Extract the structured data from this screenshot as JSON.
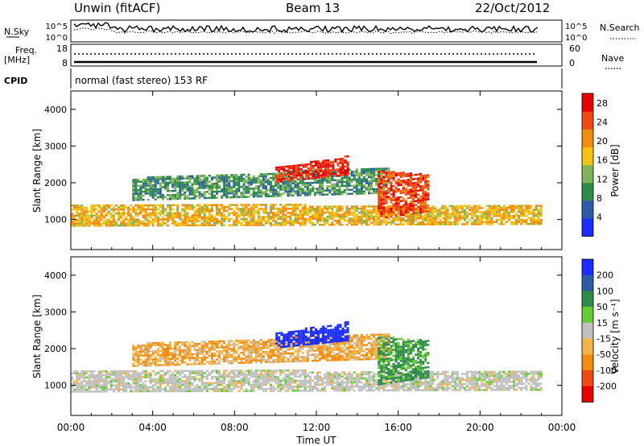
{
  "header": {
    "station": "Unwin (fitACF)",
    "beam": "Beam 13",
    "date": "22/Oct/2012"
  },
  "noise_panel": {
    "left_label": "N.Sky",
    "right_label": "N.Search",
    "left_ticks": [
      "10^5",
      "10^0"
    ],
    "right_ticks": [
      "10^5",
      "10^0"
    ]
  },
  "freq_panel": {
    "left_label_1": "Freq.",
    "left_label_2": "[MHz]",
    "left_ticks": [
      "18",
      "8"
    ],
    "right_label": "Nave",
    "right_ticks": [
      "60",
      "0"
    ]
  },
  "cpid": {
    "label": "CPID",
    "value": "normal (fast stereo) 153 RF"
  },
  "chart_data": [
    {
      "type": "heatmap",
      "panel": "power",
      "ylabel": "Slant Range [km]",
      "xlabel": "",
      "x_ticks": [
        "00:00",
        "04:00",
        "08:00",
        "12:00",
        "16:00",
        "20:00",
        "00:00"
      ],
      "xlim_hours": [
        0,
        24
      ],
      "y_ticks": [
        "1000",
        "2000",
        "3000",
        "4000"
      ],
      "ylim": [
        180,
        4500
      ],
      "colorbar": {
        "label": "Power [dB]",
        "ticks": [
          "4",
          "8",
          "12",
          "16",
          "20",
          "24",
          "28"
        ],
        "range": [
          0,
          30
        ],
        "colors": [
          "#1a2cff",
          "#2a5aa8",
          "#2e8a4a",
          "#7fb55a",
          "#f2c20e",
          "#f08c10",
          "#f04a14",
          "#e60000"
        ]
      },
      "bands": [
        {
          "start_h": 0.0,
          "end_h": 23.0,
          "lo_start": 800,
          "hi_start": 1400,
          "lo_end": 850,
          "hi_end": 1350,
          "level": 18
        },
        {
          "start_h": 3.0,
          "end_h": 15.5,
          "lo_start": 1500,
          "hi_start": 2100,
          "lo_end": 1700,
          "hi_end": 2400,
          "level": 10
        },
        {
          "start_h": 10.0,
          "end_h": 13.5,
          "lo_start": 2000,
          "hi_start": 2400,
          "lo_end": 2200,
          "hi_end": 2700,
          "level": 27
        },
        {
          "start_h": 15.0,
          "end_h": 17.5,
          "lo_start": 1000,
          "hi_start": 2300,
          "lo_end": 1200,
          "hi_end": 2200,
          "level": 25
        }
      ]
    },
    {
      "type": "heatmap",
      "panel": "velocity",
      "ylabel": "Slant Range [km]",
      "xlabel": "Time UT",
      "x_ticks": [
        "00:00",
        "04:00",
        "08:00",
        "12:00",
        "16:00",
        "20:00",
        "00:00"
      ],
      "xlim_hours": [
        0,
        24
      ],
      "y_ticks": [
        "1000",
        "2000",
        "3000",
        "4000"
      ],
      "ylim": [
        180,
        4500
      ],
      "colorbar": {
        "label": "Velocity [m s⁻¹]",
        "ticks": [
          "200",
          "100",
          "50",
          "15",
          "-15",
          "-50",
          "-100",
          "-200"
        ],
        "colors": [
          "#1a2cff",
          "#2a5aa8",
          "#2e8a4a",
          "#66cc33",
          "#c0c0c0",
          "#f2b44a",
          "#f08c10",
          "#f04a14",
          "#e60000"
        ]
      },
      "bands": [
        {
          "start_h": 0.0,
          "end_h": 23.0,
          "lo_start": 800,
          "hi_start": 1400,
          "lo_end": 850,
          "hi_end": 1350,
          "level": 0
        },
        {
          "start_h": 3.0,
          "end_h": 15.5,
          "lo_start": 1500,
          "hi_start": 2100,
          "lo_end": 1700,
          "hi_end": 2400,
          "level": -30
        },
        {
          "start_h": 10.0,
          "end_h": 13.5,
          "lo_start": 2000,
          "hi_start": 2400,
          "lo_end": 2200,
          "hi_end": 2700,
          "level": 180
        },
        {
          "start_h": 15.0,
          "end_h": 17.5,
          "lo_start": 1000,
          "hi_start": 2300,
          "lo_end": 1200,
          "hi_end": 2200,
          "level": 40
        }
      ]
    }
  ]
}
